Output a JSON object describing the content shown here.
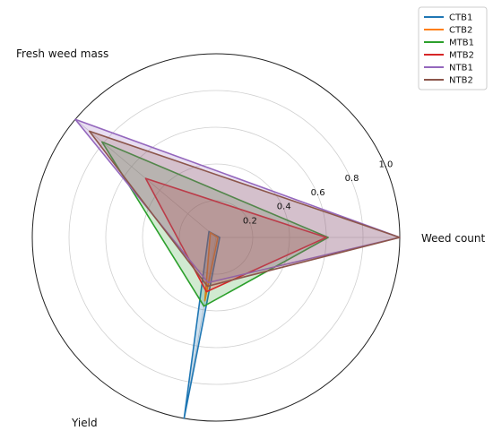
{
  "chart_data": {
    "type": "radar",
    "axes": [
      "Weed count",
      "Fresh weed mass",
      "Yield"
    ],
    "rlim": [
      0,
      1
    ],
    "r_ticks": [
      "0.2",
      "0.4",
      "0.6",
      "0.8",
      "1.0"
    ],
    "grid": true,
    "legend_position": "top-right",
    "series": [
      {
        "name": "CTB1",
        "color": "#1f77b4",
        "values": [
          0.02,
          0.05,
          1.0
        ]
      },
      {
        "name": "CTB2",
        "color": "#ff7f0e",
        "values": [
          0.01,
          0.04,
          0.35
        ]
      },
      {
        "name": "MTB1",
        "color": "#2ca02c",
        "values": [
          0.61,
          0.81,
          0.38
        ]
      },
      {
        "name": "MTB2",
        "color": "#d62728",
        "values": [
          0.6,
          0.5,
          0.3
        ]
      },
      {
        "name": "NTB1",
        "color": "#9467bd",
        "values": [
          1.0,
          1.0,
          0.25
        ]
      },
      {
        "name": "NTB2",
        "color": "#8c564b",
        "values": [
          1.0,
          0.9,
          0.27
        ]
      }
    ]
  }
}
